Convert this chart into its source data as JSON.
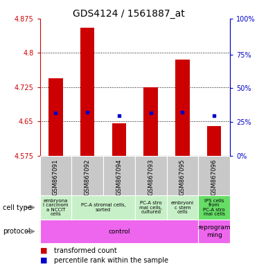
{
  "title": "GDS4124 / 1561887_at",
  "samples": [
    "GSM867091",
    "GSM867092",
    "GSM867094",
    "GSM867093",
    "GSM867095",
    "GSM867096"
  ],
  "bar_bottoms": [
    4.575,
    4.575,
    4.575,
    4.575,
    4.575,
    4.575
  ],
  "bar_tops": [
    4.745,
    4.855,
    4.645,
    4.725,
    4.785,
    4.64
  ],
  "blue_dots": [
    4.668,
    4.67,
    4.662,
    4.668,
    4.67,
    4.663
  ],
  "ylim_left": [
    4.575,
    4.875
  ],
  "yticks_left": [
    4.575,
    4.65,
    4.725,
    4.8,
    4.875
  ],
  "yticks_left_labels": [
    "4.575",
    "4.65",
    "4.725",
    "4.8",
    "4.875"
  ],
  "yticks_right_pct": [
    0,
    25,
    50,
    75,
    100
  ],
  "yticks_right_vals": [
    4.575,
    4.64875,
    4.7225,
    4.79625,
    4.875
  ],
  "cell_types": [
    {
      "label": "embryona\nl carcinom\na NCCIT\ncells",
      "span": [
        0,
        1
      ],
      "color": "#c8f0c8"
    },
    {
      "label": "PC-A stromal cells,\nsorted",
      "span": [
        1,
        3
      ],
      "color": "#c8f0c8"
    },
    {
      "label": "PC-A stro\nmal cells,\ncultured",
      "span": [
        3,
        4
      ],
      "color": "#c8f0c8"
    },
    {
      "label": "embryoni\nc stem\ncells",
      "span": [
        4,
        5
      ],
      "color": "#c8f0c8"
    },
    {
      "label": "IPS cells\nfrom\nPC-A stro\nmal cells",
      "span": [
        5,
        6
      ],
      "color": "#66dd66"
    }
  ],
  "protocols": [
    {
      "label": "control",
      "span": [
        0,
        5
      ],
      "color": "#ee66ee"
    },
    {
      "label": "reprogram\nming",
      "span": [
        5,
        6
      ],
      "color": "#ee66ee"
    }
  ],
  "bar_color": "#cc0000",
  "dot_color": "#0000cc",
  "left_axis_color": "#cc0000",
  "right_axis_color": "#0000cc",
  "sample_bg_color": "#c8c8c8",
  "title_fontsize": 10,
  "tick_fontsize": 7,
  "label_fontsize": 6,
  "legend_fontsize": 7,
  "rowlabel_fontsize": 7
}
